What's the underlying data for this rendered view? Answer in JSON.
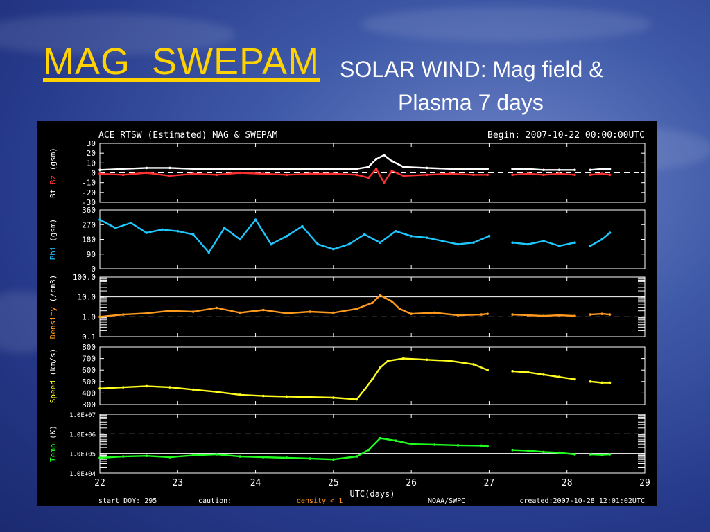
{
  "slide": {
    "title": "MAG_SWEPAM",
    "subtitle_line1": "SOLAR WIND: Mag field &",
    "subtitle_line2": "Plasma 7 days",
    "colors": {
      "title": "#ffd200",
      "subtitle": "#ffffff",
      "background": "#2c4496"
    }
  },
  "chart_data": {
    "type": "scatter",
    "title": "ACE RTSW (Estimated) MAG & SWEPAM",
    "begin_label": "Begin: 2007-10-22 00:00:00UTC",
    "xlabel": "UTC(days)",
    "x_ticks": [
      "22",
      "23",
      "24",
      "25",
      "26",
      "27",
      "28",
      "29"
    ],
    "xlim": [
      22,
      29
    ],
    "footer": {
      "start": "start DOY: 295",
      "caution": "caution:",
      "density_note": "density < 1",
      "source": "NOAA/SWPC",
      "created": "created:2007-10-28 12:01:02UTC"
    },
    "panels": [
      {
        "id": "mag",
        "ylabel_parts": [
          {
            "text": "Bt",
            "color": "#ffffff"
          },
          {
            "text": " Bz",
            "color": "#ff3030"
          },
          {
            "text": " (gsm)",
            "color": "#ffffff"
          }
        ],
        "yticks": [
          "30",
          "20",
          "10",
          "0",
          "-10",
          "-20",
          "-30"
        ],
        "ylim": [
          -30,
          30
        ],
        "dashed_ref": [
          0
        ],
        "series": [
          {
            "name": "Bt",
            "color": "#ffffff",
            "segments": [
              {
                "x": [
                  22.0,
                  22.3,
                  22.6,
                  22.9,
                  23.2,
                  23.5,
                  23.8,
                  24.1,
                  24.4,
                  24.7,
                  25.0,
                  25.3,
                  25.45,
                  25.55,
                  25.65,
                  25.75,
                  25.9,
                  26.2,
                  26.5,
                  26.8,
                  26.98
                ],
                "y": [
                  3,
                  4,
                  5,
                  5,
                  4,
                  4,
                  4,
                  4,
                  4,
                  4,
                  4,
                  4,
                  6,
                  14,
                  18,
                  12,
                  6,
                  5,
                  4,
                  4,
                  4
                ]
              },
              {
                "x": [
                  27.3,
                  27.5,
                  27.7,
                  27.9,
                  28.1
                ],
                "y": [
                  4,
                  4,
                  3,
                  3,
                  3
                ]
              },
              {
                "x": [
                  28.3,
                  28.45,
                  28.55
                ],
                "y": [
                  3,
                  4,
                  4
                ]
              }
            ]
          },
          {
            "name": "Bz",
            "color": "#ff3030",
            "segments": [
              {
                "x": [
                  22.0,
                  22.3,
                  22.6,
                  22.9,
                  23.2,
                  23.5,
                  23.8,
                  24.1,
                  24.4,
                  24.7,
                  25.0,
                  25.3,
                  25.45,
                  25.55,
                  25.65,
                  25.75,
                  25.9,
                  26.2,
                  26.5,
                  26.8,
                  26.98
                ],
                "y": [
                  -1,
                  -2,
                  0,
                  -3,
                  -1,
                  -2,
                  0,
                  -1,
                  -2,
                  -1,
                  -1,
                  -2,
                  -5,
                  4,
                  -10,
                  2,
                  -3,
                  -2,
                  -1,
                  -2,
                  -2
                ]
              },
              {
                "x": [
                  27.3,
                  27.5,
                  27.7,
                  27.9,
                  28.1
                ],
                "y": [
                  -2,
                  -1,
                  -2,
                  -1,
                  -2
                ]
              },
              {
                "x": [
                  28.3,
                  28.45,
                  28.55
                ],
                "y": [
                  -2,
                  -1,
                  -2
                ]
              }
            ]
          }
        ]
      },
      {
        "id": "phi",
        "ylabel_parts": [
          {
            "text": "Phi",
            "color": "#1ec8ff"
          },
          {
            "text": " (gsm)",
            "color": "#ffffff"
          }
        ],
        "yticks": [
          "360",
          "270",
          "180",
          "90",
          "0"
        ],
        "ylim": [
          0,
          360
        ],
        "dashed_ref": [],
        "series": [
          {
            "name": "Phi",
            "color": "#1ec8ff",
            "segments": [
              {
                "x": [
                  22.0,
                  22.2,
                  22.4,
                  22.6,
                  22.8,
                  23.0,
                  23.2,
                  23.4,
                  23.6,
                  23.8,
                  24.0,
                  24.2,
                  24.4,
                  24.6,
                  24.8,
                  25.0,
                  25.2,
                  25.4,
                  25.6,
                  25.8,
                  26.0,
                  26.2,
                  26.4,
                  26.6,
                  26.8,
                  27.0
                ],
                "y": [
                  300,
                  250,
                  280,
                  220,
                  240,
                  230,
                  210,
                  100,
                  250,
                  180,
                  300,
                  150,
                  200,
                  260,
                  150,
                  120,
                  150,
                  210,
                  160,
                  230,
                  200,
                  190,
                  170,
                  150,
                  160,
                  200
                ]
              },
              {
                "x": [
                  27.3,
                  27.5,
                  27.7,
                  27.9,
                  28.1
                ],
                "y": [
                  160,
                  150,
                  170,
                  140,
                  160
                ]
              },
              {
                "x": [
                  28.3,
                  28.45,
                  28.55
                ],
                "y": [
                  140,
                  180,
                  220
                ]
              }
            ]
          }
        ]
      },
      {
        "id": "density",
        "log": true,
        "ylabel_parts": [
          {
            "text": "Density",
            "color": "#ff9a1e"
          },
          {
            "text": " (/cm3)",
            "color": "#ffffff"
          }
        ],
        "yticks": [
          "100.0",
          "10.0",
          "1.0",
          "0.1"
        ],
        "ylim": [
          0.1,
          100
        ],
        "dashed_ref": [
          1
        ],
        "solid_ref": [
          10
        ],
        "series": [
          {
            "name": "Density",
            "color": "#ff9a1e",
            "segments": [
              {
                "x": [
                  22.0,
                  22.3,
                  22.6,
                  22.9,
                  23.2,
                  23.5,
                  23.8,
                  24.1,
                  24.4,
                  24.7,
                  25.0,
                  25.3,
                  25.5,
                  25.6,
                  25.75,
                  25.85,
                  26.0,
                  26.3,
                  26.6,
                  26.9,
                  26.98
                ],
                "y": [
                  1.0,
                  1.3,
                  1.5,
                  2.0,
                  1.8,
                  2.8,
                  1.6,
                  2.2,
                  1.5,
                  1.8,
                  1.6,
                  2.5,
                  5.0,
                  12.0,
                  6.0,
                  2.5,
                  1.4,
                  1.6,
                  1.2,
                  1.3,
                  1.4
                ]
              },
              {
                "x": [
                  27.3,
                  27.5,
                  27.7,
                  27.9,
                  28.1
                ],
                "y": [
                  1.3,
                  1.2,
                  1.1,
                  1.2,
                  1.1
                ]
              },
              {
                "x": [
                  28.3,
                  28.45,
                  28.55
                ],
                "y": [
                  1.3,
                  1.4,
                  1.3
                ]
              }
            ]
          }
        ]
      },
      {
        "id": "speed",
        "ylabel_parts": [
          {
            "text": "Speed",
            "color": "#ffff1e"
          },
          {
            "text": " (km/s)",
            "color": "#ffffff"
          }
        ],
        "yticks": [
          "800",
          "700",
          "600",
          "500",
          "400",
          "300"
        ],
        "ylim": [
          300,
          800
        ],
        "dashed_ref": [],
        "series": [
          {
            "name": "Speed",
            "color": "#ffff1e",
            "segments": [
              {
                "x": [
                  22.0,
                  22.3,
                  22.6,
                  22.9,
                  23.2,
                  23.5,
                  23.8,
                  24.1,
                  24.4,
                  24.7,
                  25.0,
                  25.3,
                  25.4,
                  25.5,
                  25.6,
                  25.7,
                  25.9,
                  26.2,
                  26.5,
                  26.8,
                  26.98
                ],
                "y": [
                  440,
                  450,
                  460,
                  450,
                  430,
                  410,
                  385,
                  375,
                  370,
                  365,
                  360,
                  345,
                  430,
                  520,
                  620,
                  680,
                  700,
                  690,
                  680,
                  650,
                  600
                ]
              },
              {
                "x": [
                  27.3,
                  27.5,
                  27.7,
                  27.9,
                  28.1
                ],
                "y": [
                  590,
                  580,
                  560,
                  540,
                  520
                ]
              },
              {
                "x": [
                  28.3,
                  28.45,
                  28.55
                ],
                "y": [
                  500,
                  490,
                  490
                ]
              }
            ]
          }
        ]
      },
      {
        "id": "temp",
        "log": true,
        "ylabel_parts": [
          {
            "text": "Temp",
            "color": "#1eff1e"
          },
          {
            "text": " (K)",
            "color": "#ffffff"
          }
        ],
        "yticks": [
          "1.0E+07",
          "1.0E+06",
          "1.0E+05",
          "1.0E+04"
        ],
        "ylim": [
          10000,
          10000000
        ],
        "dashed_ref": [
          1000000
        ],
        "solid_ref": [
          100000
        ],
        "series": [
          {
            "name": "Temp",
            "color": "#1eff1e",
            "segments": [
              {
                "x": [
                  22.0,
                  22.3,
                  22.6,
                  22.9,
                  23.2,
                  23.5,
                  23.8,
                  24.1,
                  24.4,
                  24.7,
                  25.0,
                  25.3,
                  25.45,
                  25.6,
                  25.8,
                  26.0,
                  26.3,
                  26.6,
                  26.9,
                  26.98
                ],
                "y": [
                  60000,
                  70000,
                  75000,
                  65000,
                  80000,
                  90000,
                  70000,
                  65000,
                  60000,
                  55000,
                  50000,
                  70000,
                  150000,
                  600000,
                  450000,
                  300000,
                  280000,
                  260000,
                  250000,
                  230000
                ]
              },
              {
                "x": [
                  27.3,
                  27.5,
                  27.7,
                  27.9,
                  28.1
                ],
                "y": [
                  150000,
                  140000,
                  120000,
                  110000,
                  90000
                ]
              },
              {
                "x": [
                  28.3,
                  28.45,
                  28.55
                ],
                "y": [
                  90000,
                  85000,
                  90000
                ]
              }
            ]
          }
        ]
      }
    ]
  }
}
